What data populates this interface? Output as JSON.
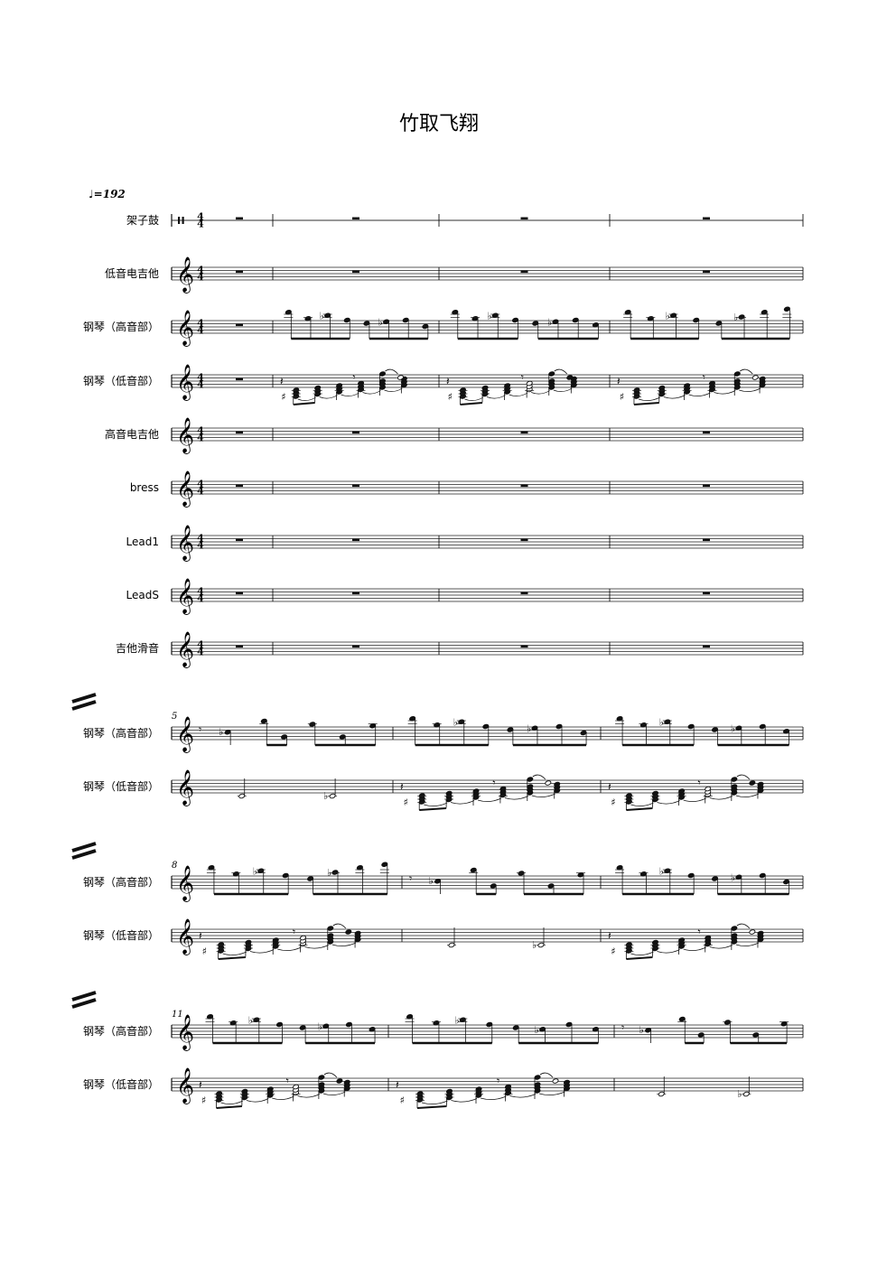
{
  "title": "竹取飞翔",
  "tempo": "♩=192",
  "system_one": {
    "staves": [
      {
        "label": "架子鼓",
        "clef": "percussion",
        "time_signature": "4/4",
        "content": "rests"
      },
      {
        "label": "低音电吉他",
        "clef": "treble",
        "time_signature": "4/4",
        "content": "rests"
      },
      {
        "label": "钢琴（高音部）",
        "clef": "treble",
        "time_signature": "4/4",
        "content": "notes"
      },
      {
        "label": "钢琴（低音部）",
        "clef": "treble",
        "time_signature": "4/4",
        "content": "chords"
      },
      {
        "label": "高音电吉他",
        "clef": "treble",
        "time_signature": "4/4",
        "content": "rests"
      },
      {
        "label": "bress",
        "clef": "treble",
        "time_signature": "4/4",
        "content": "rests"
      },
      {
        "label": "Lead1",
        "clef": "treble",
        "time_signature": "4/4",
        "content": "rests"
      },
      {
        "label": "LeadS",
        "clef": "treble",
        "time_signature": "4/4",
        "content": "rests"
      },
      {
        "label": "吉他滑音",
        "clef": "treble",
        "time_signature": "4/4",
        "content": "rests"
      }
    ],
    "measure_count": 4
  },
  "piano_systems": [
    {
      "start_measure": "5",
      "upper_label": "钢琴（高音部）",
      "lower_label": "钢琴（低音部）",
      "measure_count": 3
    },
    {
      "start_measure": "8",
      "upper_label": "钢琴（高音部）",
      "lower_label": "钢琴（低音部）",
      "measure_count": 3
    },
    {
      "start_measure": "11",
      "upper_label": "钢琴（高音部）",
      "lower_label": "钢琴（低音部）",
      "measure_count": 3
    }
  ]
}
